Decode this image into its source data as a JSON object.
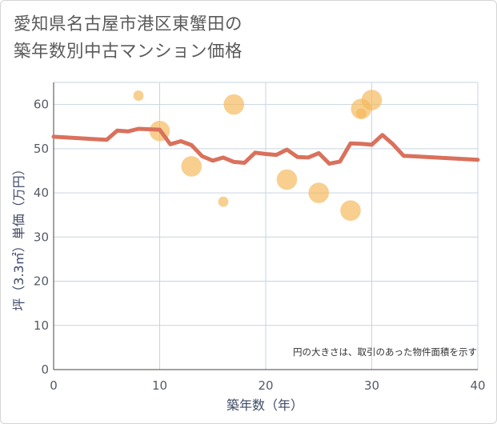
{
  "title_lines": [
    "愛知県名古屋市港区東蟹田の",
    "築年数別中古マンション価格"
  ],
  "colors": {
    "line": "#d9715c",
    "bubble": "#f5b85a",
    "grid": "#c7d5e0",
    "axis_text": "#555b66"
  },
  "chart_data": {
    "type": "scatter",
    "title": "愛知県名古屋市港区東蟹田の築年数別中古マンション価格",
    "xlabel": "築年数（年）",
    "ylabel": "坪（3.3㎡）単価（万円）",
    "xlim": [
      0,
      40
    ],
    "ylim": [
      0,
      65
    ],
    "xticks": [
      0,
      10,
      20,
      30,
      40
    ],
    "yticks": [
      0,
      10,
      20,
      30,
      40,
      50,
      60
    ],
    "grid": true,
    "note": "円の大きさは、取引のあった物件面積を示す",
    "series": [
      {
        "kind": "bubble",
        "points": [
          {
            "x": 8,
            "y": 62,
            "size": 2
          },
          {
            "x": 10,
            "y": 54,
            "size": 4
          },
          {
            "x": 13,
            "y": 46,
            "size": 4
          },
          {
            "x": 16,
            "y": 38,
            "size": 2
          },
          {
            "x": 17,
            "y": 60,
            "size": 4
          },
          {
            "x": 22,
            "y": 43,
            "size": 4
          },
          {
            "x": 25,
            "y": 40,
            "size": 4
          },
          {
            "x": 28,
            "y": 36,
            "size": 4
          },
          {
            "x": 29,
            "y": 59,
            "size": 4
          },
          {
            "x": 29,
            "y": 58,
            "size": 2
          },
          {
            "x": 30,
            "y": 61,
            "size": 4
          }
        ]
      },
      {
        "kind": "line",
        "points": [
          {
            "x": 0,
            "y": 52.7
          },
          {
            "x": 5,
            "y": 52
          },
          {
            "x": 6,
            "y": 54.1
          },
          {
            "x": 7,
            "y": 53.9
          },
          {
            "x": 8,
            "y": 54.5
          },
          {
            "x": 10,
            "y": 54.3
          },
          {
            "x": 11,
            "y": 51
          },
          {
            "x": 12,
            "y": 51.7
          },
          {
            "x": 13,
            "y": 50.8
          },
          {
            "x": 14,
            "y": 48.3
          },
          {
            "x": 15,
            "y": 47.3
          },
          {
            "x": 16,
            "y": 48
          },
          {
            "x": 17,
            "y": 47
          },
          {
            "x": 18,
            "y": 46.8
          },
          {
            "x": 19,
            "y": 49.1
          },
          {
            "x": 20,
            "y": 48.8
          },
          {
            "x": 21,
            "y": 48.6
          },
          {
            "x": 22,
            "y": 49.8
          },
          {
            "x": 23,
            "y": 48.1
          },
          {
            "x": 24,
            "y": 48
          },
          {
            "x": 25,
            "y": 49
          },
          {
            "x": 26,
            "y": 46.6
          },
          {
            "x": 27,
            "y": 47.1
          },
          {
            "x": 28,
            "y": 51.2
          },
          {
            "x": 29,
            "y": 51.1
          },
          {
            "x": 30,
            "y": 50.9
          },
          {
            "x": 31,
            "y": 53.1
          },
          {
            "x": 32,
            "y": 51
          },
          {
            "x": 33,
            "y": 48.4
          },
          {
            "x": 40,
            "y": 47.5
          }
        ]
      }
    ]
  }
}
